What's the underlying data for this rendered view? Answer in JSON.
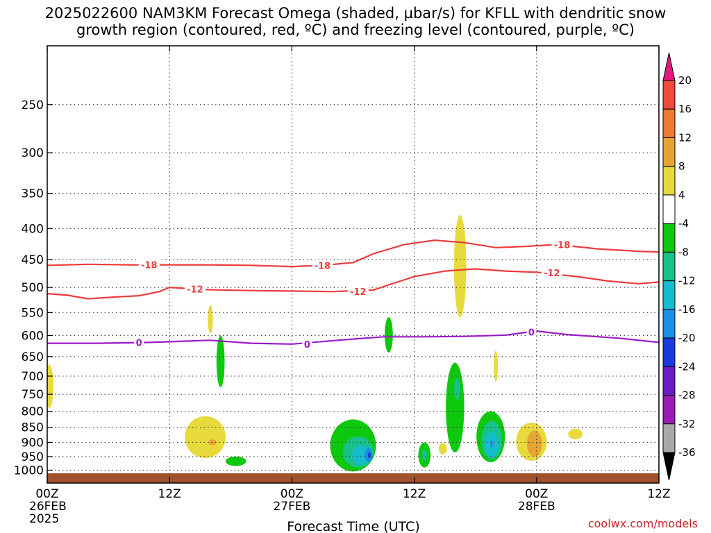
{
  "title_line1": "2025022600 NAM3KM Forecast Omega (shaded, µbar/s) for KFLL with dendritic snow",
  "title_line2": "growth region (contoured, red, ºC) and freezing level (contoured, purple, ºC)",
  "credit": "coolwx.com/models",
  "chart_data": {
    "type": "time-height cross section",
    "title": "2025022600 NAM3KM Forecast Omega (shaded, µbar/s) for KFLL with dendritic snow growth region (contoured, red, ºC) and freezing level (contoured, purple, ºC)",
    "xlabel": "Forecast Time (UTC)",
    "ylabel": "",
    "x_range_hours": [
      0,
      60
    ],
    "y_range_hPa": [
      1050,
      200
    ],
    "y_scale": "log-pressure (inverted)",
    "grid": true,
    "x_ticks": [
      {
        "hour": 0,
        "lines": [
          "00Z",
          "26FEB",
          "2025"
        ]
      },
      {
        "hour": 12,
        "lines": [
          "12Z"
        ]
      },
      {
        "hour": 24,
        "lines": [
          "00Z",
          "27FEB"
        ]
      },
      {
        "hour": 36,
        "lines": [
          "12Z"
        ]
      },
      {
        "hour": 48,
        "lines": [
          "00Z",
          "28FEB"
        ]
      },
      {
        "hour": 60,
        "lines": [
          "12Z"
        ]
      }
    ],
    "y_ticks": [
      250,
      300,
      350,
      400,
      450,
      500,
      550,
      600,
      650,
      700,
      750,
      800,
      850,
      900,
      950,
      1000
    ],
    "colorbar": {
      "labels": [
        "20",
        "16",
        "12",
        "8",
        "4",
        "-4",
        "-8",
        "-12",
        "-16",
        "-20",
        "-24",
        "-28",
        "-32",
        "-36"
      ],
      "colors": [
        "#e31a7e",
        "#f04a3c",
        "#ee7a2c",
        "#e6a532",
        "#e8da3c",
        "#ffffff",
        "#0ec80e",
        "#16c28a",
        "#14bccc",
        "#1a8fe8",
        "#1a3ae0",
        "#6a1ac8",
        "#9a1ab8",
        "#a8a8a8",
        "#000000"
      ]
    },
    "contours": [
      {
        "name": "-18",
        "color": "#ee3b3b",
        "points": [
          [
            0,
            460
          ],
          [
            4,
            458
          ],
          [
            8,
            459
          ],
          [
            12,
            459
          ],
          [
            16,
            459
          ],
          [
            20,
            460
          ],
          [
            24,
            462
          ],
          [
            27,
            460
          ],
          [
            30,
            455
          ],
          [
            32,
            440
          ],
          [
            35,
            425
          ],
          [
            38,
            418
          ],
          [
            41,
            422
          ],
          [
            44,
            430
          ],
          [
            47,
            428
          ],
          [
            50,
            425
          ],
          [
            54,
            432
          ],
          [
            58,
            436
          ],
          [
            60,
            437
          ]
        ]
      },
      {
        "name": "-12",
        "color": "#ee3b3b",
        "points": [
          [
            0,
            512
          ],
          [
            2,
            515
          ],
          [
            4,
            522
          ],
          [
            7,
            518
          ],
          [
            9,
            516
          ],
          [
            11,
            508
          ],
          [
            12,
            500
          ],
          [
            15,
            504
          ],
          [
            20,
            506
          ],
          [
            24,
            507
          ],
          [
            28,
            508
          ],
          [
            32,
            505
          ],
          [
            34,
            492
          ],
          [
            36,
            480
          ],
          [
            39,
            470
          ],
          [
            42,
            466
          ],
          [
            45,
            470
          ],
          [
            48,
            472
          ],
          [
            52,
            480
          ],
          [
            55,
            488
          ],
          [
            58,
            493
          ],
          [
            60,
            490
          ]
        ]
      },
      {
        "name": "0",
        "color": "#9b19c8",
        "points": [
          [
            0,
            618
          ],
          [
            5,
            618
          ],
          [
            10,
            616
          ],
          [
            16,
            611
          ],
          [
            20,
            618
          ],
          [
            24,
            620
          ],
          [
            29,
            610
          ],
          [
            33,
            603
          ],
          [
            37,
            603
          ],
          [
            41,
            602
          ],
          [
            45,
            599
          ],
          [
            47,
            593
          ],
          [
            48,
            590
          ],
          [
            51,
            598
          ],
          [
            56,
            606
          ],
          [
            60,
            616
          ]
        ]
      }
    ],
    "contour_labels": [
      {
        "text": "-18",
        "hour": 10,
        "hPa": 459
      },
      {
        "text": "-18",
        "hour": 27,
        "hPa": 460
      },
      {
        "text": "-18",
        "hour": 50.5,
        "hPa": 425
      },
      {
        "text": "-12",
        "hour": 14.5,
        "hPa": 503
      },
      {
        "text": "-12",
        "hour": 30.5,
        "hPa": 508
      },
      {
        "text": "-12",
        "hour": 49.5,
        "hPa": 473
      },
      {
        "text": "0",
        "hour": 9,
        "hPa": 616
      },
      {
        "text": "0",
        "hour": 25.5,
        "hPa": 620
      },
      {
        "text": "0",
        "hour": 47.5,
        "hPa": 592
      }
    ],
    "omega_areas": [
      {
        "range": "4 to 8",
        "color": "#e8da3c",
        "hour": 0.2,
        "hPa": 730,
        "w_hours": 0.8,
        "h_hPa": 120
      },
      {
        "range": "4 to 8",
        "color": "#e8da3c",
        "hour": 16,
        "hPa": 565,
        "w_hours": 0.5,
        "h_hPa": 60
      },
      {
        "range": "4 to 8",
        "color": "#e8da3c",
        "hour": 15.5,
        "hPa": 885,
        "w_hours": 4,
        "h_hPa": 140
      },
      {
        "range": "8 to 12",
        "color": "#e6a532",
        "hour": 16.2,
        "hPa": 900,
        "w_hours": 0.8,
        "h_hPa": 20
      },
      {
        "range": "-8 to -4",
        "color": "#0ec80e",
        "hour": 17,
        "hPa": 665,
        "w_hours": 0.8,
        "h_hPa": 130
      },
      {
        "range": "-8 to -4",
        "color": "#0ec80e",
        "hour": 18.5,
        "hPa": 967,
        "w_hours": 2,
        "h_hPa": 35
      },
      {
        "range": "-8 to -4",
        "color": "#0ec80e",
        "hour": 33.5,
        "hPa": 600,
        "w_hours": 0.8,
        "h_hPa": 80
      },
      {
        "range": "4 to 8",
        "color": "#e8da3c",
        "hour": 40.5,
        "hPa": 470,
        "w_hours": 1.2,
        "h_hPa": 180
      },
      {
        "range": "4 to 8",
        "color": "#e8da3c",
        "hour": 44,
        "hPa": 675,
        "w_hours": 0.4,
        "h_hPa": 80
      },
      {
        "range": "-8 to -4",
        "color": "#0ec80e",
        "hour": 30,
        "hPa": 915,
        "w_hours": 4.5,
        "h_hPa": 180
      },
      {
        "range": "-12 to -8",
        "color": "#16c28a",
        "hour": 30.5,
        "hPa": 935,
        "w_hours": 3,
        "h_hPa": 110
      },
      {
        "range": "-16 to -12",
        "color": "#14bccc",
        "hour": 30.8,
        "hPa": 945,
        "w_hours": 1.8,
        "h_hPa": 70
      },
      {
        "range": "-20 to -16",
        "color": "#1a8fe8",
        "hour": 31.5,
        "hPa": 945,
        "w_hours": 0.7,
        "h_hPa": 50
      },
      {
        "range": "-24 to -20",
        "color": "#1a3ae0",
        "hour": 31.6,
        "hPa": 945,
        "w_hours": 0.3,
        "h_hPa": 20
      },
      {
        "range": "-8 to -4",
        "color": "#0ec80e",
        "hour": 37,
        "hPa": 945,
        "w_hours": 1.2,
        "h_hPa": 90
      },
      {
        "range": "-12 to -8",
        "color": "#16c28a",
        "hour": 37,
        "hPa": 945,
        "w_hours": 0.5,
        "h_hPa": 40
      },
      {
        "range": "4 to 8",
        "color": "#e8da3c",
        "hour": 38.8,
        "hPa": 922,
        "w_hours": 0.8,
        "h_hPa": 40
      },
      {
        "range": "-8 to -4",
        "color": "#0ec80e",
        "hour": 40,
        "hPa": 800,
        "w_hours": 1.8,
        "h_hPa": 270
      },
      {
        "range": "-12 to -8",
        "color": "#16c28a",
        "hour": 40.2,
        "hPa": 735,
        "w_hours": 0.6,
        "h_hPa": 60
      },
      {
        "range": "4 to 8",
        "color": "#e8da3c",
        "hour": 42.5,
        "hPa": 885,
        "w_hours": 0.5,
        "h_hPa": 80
      },
      {
        "range": "-8 to -4",
        "color": "#0ec80e",
        "hour": 43.5,
        "hPa": 885,
        "w_hours": 2.8,
        "h_hPa": 170
      },
      {
        "range": "-12 to -8",
        "color": "#16c28a",
        "hour": 43.6,
        "hPa": 895,
        "w_hours": 2,
        "h_hPa": 130
      },
      {
        "range": "-16 to -12",
        "color": "#14bccc",
        "hour": 43.6,
        "hPa": 910,
        "w_hours": 1.3,
        "h_hPa": 90
      },
      {
        "range": "-20 to -16",
        "color": "#1a8fe8",
        "hour": 43.6,
        "hPa": 905,
        "w_hours": 0.3,
        "h_hPa": 25
      },
      {
        "range": "4 to 8",
        "color": "#e8da3c",
        "hour": 47.5,
        "hPa": 900,
        "w_hours": 3,
        "h_hPa": 130
      },
      {
        "range": "8 to 12",
        "color": "#e6a532",
        "hour": 47.8,
        "hPa": 905,
        "w_hours": 1.5,
        "h_hPa": 90
      },
      {
        "range": "4 to 8",
        "color": "#e8da3c",
        "hour": 51.8,
        "hPa": 872,
        "w_hours": 1.4,
        "h_hPa": 35
      }
    ],
    "ground": {
      "color": "#a0522d",
      "from_hPa": 1050,
      "to_hPa": 1012
    }
  }
}
